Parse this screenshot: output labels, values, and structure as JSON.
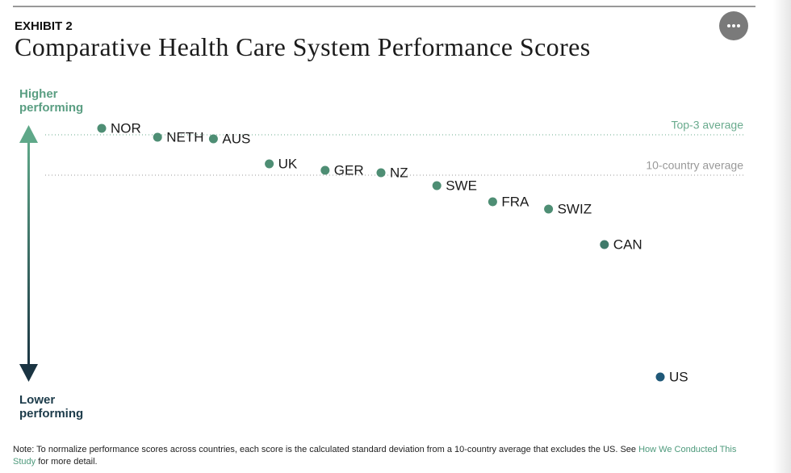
{
  "header": {
    "label": "EXHIBIT 2"
  },
  "chart_data": {
    "type": "dot",
    "title": "Comparative Health Care System Performance Scores",
    "y_label_top": "Higher performing",
    "y_label_bottom": "Lower performing",
    "categories": [
      "NOR",
      "NETH",
      "AUS",
      "UK",
      "GER",
      "NZ",
      "SWE",
      "FRA",
      "SWIZ",
      "CAN",
      "US"
    ],
    "values": [
      0.58,
      0.47,
      0.45,
      0.14,
      0.06,
      0.03,
      -0.13,
      -0.33,
      -0.42,
      -0.86,
      -2.5
    ],
    "colors": [
      "#4e8e74",
      "#4e8e74",
      "#4e8e74",
      "#4e8e74",
      "#4e8e74",
      "#4e8e74",
      "#4e8e74",
      "#4e8e74",
      "#4e8e74",
      "#3f7a6a",
      "#1f5878"
    ],
    "ylim": [
      -2.6,
      0.7
    ],
    "reference_lines": [
      {
        "label": "Top-3 average",
        "value": 0.5,
        "color": "#6aab8e"
      },
      {
        "label": "10-country average",
        "value": 0,
        "color": "#999999"
      }
    ]
  },
  "note": {
    "before": "Note: To normalize performance scores across countries, each score is the calculated standard deviation from a 10-country average that excludes the US. See",
    "link": "How We Conducted This Study",
    "after": "for more detail."
  }
}
